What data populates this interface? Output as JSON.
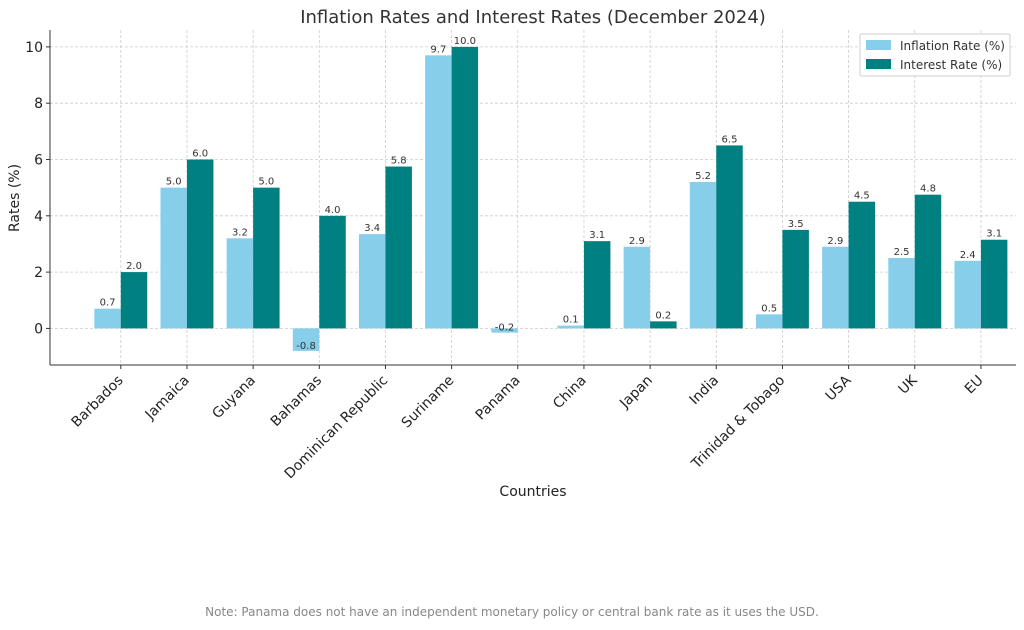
{
  "chart_data": {
    "type": "bar",
    "title": "Inflation Rates and Interest Rates (December 2024)",
    "xlabel": "Countries",
    "ylabel": "Rates (%)",
    "ylim": [
      -1.3,
      10.6
    ],
    "yticks": [
      0,
      2,
      4,
      6,
      8,
      10
    ],
    "grid": true,
    "legend_position": "top-right",
    "categories": [
      "Barbados",
      "Jamaica",
      "Guyana",
      "Bahamas",
      "Dominican Republic",
      "Suriname",
      "Panama",
      "China",
      "Japan",
      "India",
      "Trinidad & Tobago",
      "USA",
      "UK",
      "EU"
    ],
    "series": [
      {
        "name": "Inflation Rate (%)",
        "color": "#87ceeb",
        "values": [
          0.7,
          5.0,
          3.2,
          -0.8,
          3.35,
          9.7,
          -0.15,
          0.1,
          2.9,
          5.2,
          0.5,
          2.9,
          2.5,
          2.4
        ],
        "labels": [
          "0.7",
          "5.0",
          "3.2",
          "-0.8",
          "3.4",
          "9.7",
          "-0.2",
          "0.1",
          "2.9",
          "5.2",
          "0.5",
          "2.9",
          "2.5",
          "2.4"
        ]
      },
      {
        "name": "Interest Rate (%)",
        "color": "#008080",
        "values": [
          2.0,
          6.0,
          5.0,
          4.0,
          5.75,
          10.0,
          null,
          3.1,
          0.25,
          6.5,
          3.5,
          4.5,
          4.75,
          3.15
        ],
        "labels": [
          "2.0",
          "6.0",
          "5.0",
          "4.0",
          "5.8",
          "10.0",
          "",
          "3.1",
          "0.2",
          "6.5",
          "3.5",
          "4.5",
          "4.8",
          "3.1"
        ]
      }
    ],
    "note": "Note: Panama does not have an independent monetary policy or central bank rate as it uses the USD."
  }
}
